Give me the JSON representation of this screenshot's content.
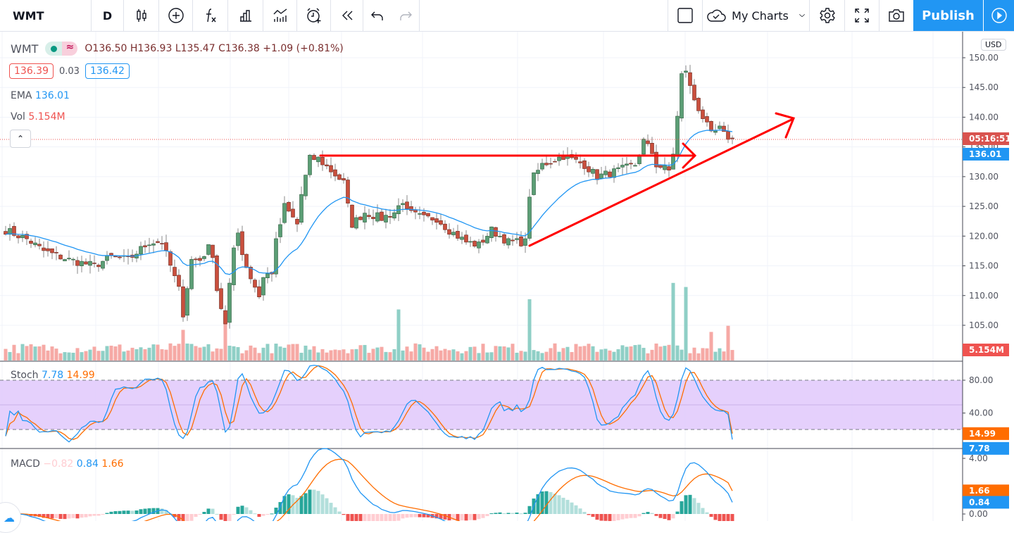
{
  "toolbar": {
    "symbol": "WMT",
    "interval": "D",
    "publish_label": "Publish",
    "my_charts_label": "My Charts",
    "icons": [
      "candles-icon",
      "add-symbol-icon",
      "indicators-fx-icon",
      "compare-bars-icon",
      "templates-icon",
      "alert-icon",
      "replay-icon",
      "undo-icon",
      "redo-icon",
      "layout-square-icon",
      "cloud-icon",
      "chevron-down-icon",
      "gear-icon",
      "fullscreen-icon",
      "camera-icon",
      "play-icon"
    ]
  },
  "legend": {
    "symbol": "WMT",
    "ohlc": "O136.50 H136.93 L135.47 C136.38 +1.09 (+0.81%)",
    "bid": "136.39",
    "spread": "0.03",
    "ask": "136.42",
    "ema_label": "EMA",
    "ema_value": "136.01",
    "vol_label": "Vol",
    "vol_value": "5.154M",
    "stoch_label": "Stoch",
    "stoch_k": "7.78",
    "stoch_d": "14.99",
    "macd_label": "MACD",
    "macd_hist": "−0.82",
    "macd_line": "0.84",
    "macd_signal": "1.66"
  },
  "axis": {
    "currency": "USD",
    "price_ticks": [
      "150.00",
      "145.00",
      "140.00",
      "135.00",
      "130.00",
      "125.00",
      "120.00",
      "115.00",
      "110.00",
      "105.00"
    ],
    "stoch_ticks": [
      "80.00",
      "40.00"
    ],
    "macd_ticks": [
      "4.00",
      "0.00"
    ],
    "countdown": "05:16:51",
    "ema_tag": "136.01",
    "vol_tag": "5.154M",
    "stoch_d_tag": "14.99",
    "stoch_k_tag": "7.78",
    "macd_signal_tag": "1.66",
    "macd_line_tag": "0.84"
  },
  "colors": {
    "up": "#5b9e75",
    "down": "#c94f3d",
    "ema": "#2196f3",
    "stoch_k": "#2196f3",
    "stoch_d": "#ff6d00",
    "band": "#e1c8fb",
    "accent": "#2196f3",
    "drawing": "#ff0000"
  },
  "chart_data": {
    "type": "candlestick",
    "symbol": "WMT",
    "bars": 173,
    "price_path": [
      [
        0,
        121
      ],
      [
        5,
        119.5
      ],
      [
        9,
        117.5
      ],
      [
        15,
        116
      ],
      [
        21,
        115
      ],
      [
        25,
        116.5
      ],
      [
        29,
        116
      ],
      [
        34,
        119
      ],
      [
        37,
        119
      ],
      [
        39,
        115
      ],
      [
        41,
        111
      ],
      [
        42,
        107
      ],
      [
        44,
        116
      ],
      [
        46,
        116
      ],
      [
        48,
        118
      ],
      [
        49,
        117
      ],
      [
        50,
        111
      ],
      [
        52,
        105
      ],
      [
        54,
        118
      ],
      [
        55,
        121
      ],
      [
        56,
        117
      ],
      [
        58,
        113
      ],
      [
        60,
        110
      ],
      [
        61,
        113
      ],
      [
        63,
        114
      ],
      [
        64,
        119
      ],
      [
        66,
        125
      ],
      [
        69,
        122
      ],
      [
        70,
        127
      ],
      [
        72,
        133
      ],
      [
        74,
        133
      ],
      [
        77,
        131
      ],
      [
        80,
        129
      ],
      [
        81,
        125
      ],
      [
        82,
        122
      ],
      [
        85,
        124
      ],
      [
        89,
        123
      ],
      [
        92,
        124
      ],
      [
        94,
        126
      ],
      [
        95,
        124
      ],
      [
        99,
        123
      ],
      [
        102,
        123
      ],
      [
        105,
        121
      ],
      [
        109,
        119
      ],
      [
        112,
        118.5
      ],
      [
        115,
        121
      ],
      [
        119,
        119
      ],
      [
        123,
        119
      ],
      [
        124,
        127
      ],
      [
        125,
        130
      ],
      [
        127,
        132
      ],
      [
        132,
        133.5
      ],
      [
        137,
        132
      ],
      [
        140,
        130
      ],
      [
        145,
        131
      ],
      [
        149,
        132
      ],
      [
        151,
        136
      ],
      [
        153,
        134
      ],
      [
        154,
        132
      ],
      [
        157,
        131
      ],
      [
        158,
        134
      ],
      [
        159,
        140
      ],
      [
        160,
        147
      ],
      [
        161,
        148
      ],
      [
        162,
        145
      ],
      [
        163,
        143
      ],
      [
        165,
        140
      ],
      [
        167,
        137
      ],
      [
        169,
        138
      ],
      [
        170,
        137
      ],
      [
        172,
        136.38
      ]
    ],
    "volume_spikes_millions": [
      [
        42,
        15
      ],
      [
        52,
        18
      ],
      [
        93,
        25
      ],
      [
        124,
        30
      ],
      [
        158,
        38
      ],
      [
        161,
        36
      ],
      [
        167,
        14
      ],
      [
        171,
        17
      ]
    ],
    "last_volume_millions": 5.154,
    "ylim": [
      100,
      152
    ],
    "stoch_range": [
      0,
      100
    ],
    "stoch_bands": [
      20,
      80
    ],
    "macd_range": [
      -0.6,
      4.4
    ]
  }
}
